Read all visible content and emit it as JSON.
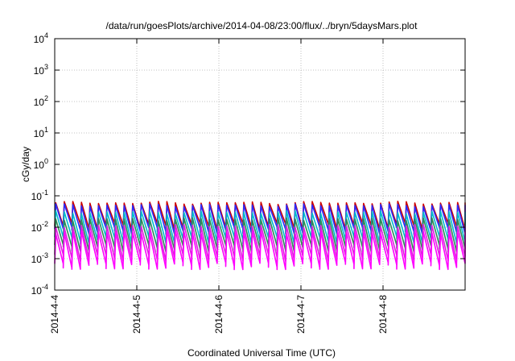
{
  "chart_data": {
    "type": "line",
    "title": "/data/run/goesPlots/archive/2014-04-08/23:00/flux/../bryn/5daysMars.plot",
    "xlabel": "Coordinated Universal Time (UTC)",
    "ylabel": "cGy/day",
    "yscale": "log",
    "ylim": [
      0.0001,
      10000
    ],
    "xlim": [
      "2014-04-04",
      "2014-04-09"
    ],
    "grid": true,
    "x_ticks": [
      "2014-4-4",
      "2014-4-5",
      "2014-4-6",
      "2014-4-7",
      "2014-4-8"
    ],
    "y_ticks": [
      {
        "base": "10",
        "exp": "-4"
      },
      {
        "base": "10",
        "exp": "-3"
      },
      {
        "base": "10",
        "exp": "-2"
      },
      {
        "base": "10",
        "exp": "-1"
      },
      {
        "base": "10",
        "exp": "0"
      },
      {
        "base": "10",
        "exp": "1"
      },
      {
        "base": "10",
        "exp": "2"
      },
      {
        "base": "10",
        "exp": "3"
      },
      {
        "base": "10",
        "exp": "4"
      }
    ],
    "cycle_hours": 2.5,
    "series": [
      {
        "color": "#cc0000",
        "peak": 0.06,
        "trough": 0.011
      },
      {
        "color": "#2a2aff",
        "peak": 0.05,
        "trough": 0.008
      },
      {
        "color": "#00bbcc",
        "peak": 0.03,
        "trough": 0.004
      },
      {
        "color": "#2e8b57",
        "peak": 0.018,
        "trough": 0.0022
      },
      {
        "color": "#dd22dd",
        "peak": 0.011,
        "trough": 0.0011
      },
      {
        "color": "#ff00ff",
        "peak": 0.007,
        "trough": 0.0006
      }
    ]
  }
}
